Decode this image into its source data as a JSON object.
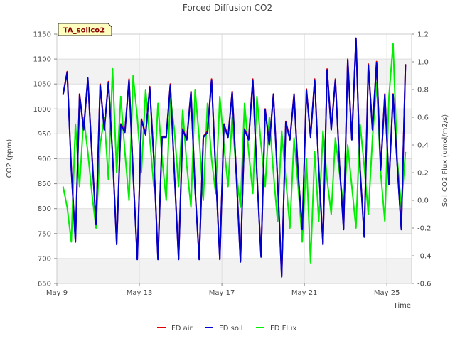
{
  "chart_data": {
    "type": "line",
    "title": "Forced Diffusion CO2",
    "badge": "TA_soilco2",
    "xlabel": "Time",
    "ylabel_left": "CO2 (ppm)",
    "ylabel_right": "Soil CO2 Flux (umol/m2/s)",
    "x_range_days": [
      9,
      26.2
    ],
    "x_ticks": [
      {
        "day": 9,
        "label": "May 9"
      },
      {
        "day": 13,
        "label": "May 13"
      },
      {
        "day": 17,
        "label": "May 17"
      },
      {
        "day": 21,
        "label": "May 21"
      },
      {
        "day": 25,
        "label": "May 25"
      }
    ],
    "ylim_left": [
      650,
      1150
    ],
    "yticks_left": [
      650,
      700,
      750,
      800,
      850,
      900,
      950,
      1000,
      1050,
      1100,
      1150
    ],
    "ylim_right": [
      -0.6,
      1.2
    ],
    "yticks_right": [
      -0.6,
      -0.4,
      -0.2,
      0.0,
      0.2,
      0.4,
      0.6,
      0.8,
      1.0,
      1.2
    ],
    "grid": true,
    "legend_position": "bottom-center",
    "series": [
      {
        "name": "FD air",
        "axis": "left",
        "color": "#dd0000",
        "x": [
          9.3,
          9.5,
          9.7,
          9.9,
          10.1,
          10.3,
          10.5,
          10.7,
          10.9,
          11.1,
          11.3,
          11.5,
          11.7,
          11.9,
          12.1,
          12.3,
          12.5,
          12.7,
          12.9,
          13.1,
          13.3,
          13.5,
          13.7,
          13.9,
          14.1,
          14.3,
          14.5,
          14.7,
          14.9,
          15.1,
          15.3,
          15.5,
          15.7,
          15.9,
          16.1,
          16.3,
          16.5,
          16.7,
          16.9,
          17.1,
          17.3,
          17.5,
          17.7,
          17.9,
          18.1,
          18.3,
          18.5,
          18.7,
          18.9,
          19.1,
          19.3,
          19.5,
          19.7,
          19.9,
          20.1,
          20.3,
          20.5,
          20.7,
          20.9,
          21.1,
          21.3,
          21.5,
          21.7,
          21.9,
          22.1,
          22.3,
          22.5,
          22.7,
          22.9,
          23.1,
          23.3,
          23.5,
          23.7,
          23.9,
          24.1,
          24.3,
          24.5,
          24.7,
          24.9,
          25.1,
          25.3,
          25.5,
          25.7,
          25.9
        ],
        "y": [
          1030,
          1075,
          880,
          735,
          1030,
          960,
          1060,
          910,
          770,
          1050,
          960,
          1055,
          910,
          730,
          970,
          955,
          1060,
          870,
          700,
          980,
          950,
          1045,
          900,
          700,
          945,
          945,
          1050,
          870,
          700,
          960,
          940,
          1035,
          840,
          700,
          945,
          955,
          1060,
          875,
          700,
          970,
          945,
          1035,
          870,
          695,
          960,
          940,
          1060,
          870,
          705,
          1000,
          930,
          1030,
          860,
          665,
          975,
          940,
          1030,
          870,
          760,
          1040,
          945,
          1060,
          880,
          730,
          1080,
          960,
          1060,
          890,
          760,
          1100,
          940,
          1140,
          880,
          745,
          1090,
          960,
          1095,
          880,
          1030,
          850,
          1030,
          890,
          760,
          1090
        ]
      },
      {
        "name": "FD soil",
        "axis": "left",
        "color": "#0000cc",
        "x": [
          9.3,
          9.5,
          9.7,
          9.9,
          10.1,
          10.3,
          10.5,
          10.7,
          10.9,
          11.1,
          11.3,
          11.5,
          11.7,
          11.9,
          12.1,
          12.3,
          12.5,
          12.7,
          12.9,
          13.1,
          13.3,
          13.5,
          13.7,
          13.9,
          14.1,
          14.3,
          14.5,
          14.7,
          14.9,
          15.1,
          15.3,
          15.5,
          15.7,
          15.9,
          16.1,
          16.3,
          16.5,
          16.7,
          16.9,
          17.1,
          17.3,
          17.5,
          17.7,
          17.9,
          18.1,
          18.3,
          18.5,
          18.7,
          18.9,
          19.1,
          19.3,
          19.5,
          19.7,
          19.9,
          20.1,
          20.3,
          20.5,
          20.7,
          20.9,
          21.1,
          21.3,
          21.5,
          21.7,
          21.9,
          22.1,
          22.3,
          22.5,
          22.7,
          22.9,
          23.1,
          23.3,
          23.5,
          23.7,
          23.9,
          24.1,
          24.3,
          24.5,
          24.7,
          24.9,
          25.1,
          25.3,
          25.5,
          25.7,
          25.9
        ],
        "y": [
          1028,
          1073,
          878,
          733,
          1028,
          958,
          1062,
          908,
          768,
          1048,
          958,
          1053,
          908,
          728,
          968,
          953,
          1058,
          868,
          698,
          978,
          948,
          1043,
          898,
          698,
          943,
          943,
          1048,
          868,
          698,
          958,
          938,
          1033,
          838,
          698,
          943,
          953,
          1058,
          873,
          698,
          968,
          943,
          1033,
          868,
          693,
          958,
          938,
          1058,
          868,
          703,
          998,
          928,
          1028,
          858,
          663,
          973,
          938,
          1028,
          868,
          758,
          1038,
          943,
          1058,
          878,
          728,
          1078,
          958,
          1058,
          888,
          758,
          1098,
          938,
          1142,
          878,
          743,
          1088,
          958,
          1093,
          878,
          1028,
          848,
          1028,
          888,
          758,
          1088
        ]
      },
      {
        "name": "FD Flux",
        "axis": "right",
        "color": "#00ee00",
        "x": [
          9.3,
          9.5,
          9.7,
          9.9,
          10.1,
          10.3,
          10.5,
          10.7,
          10.9,
          11.1,
          11.3,
          11.5,
          11.7,
          11.9,
          12.1,
          12.3,
          12.5,
          12.7,
          12.9,
          13.1,
          13.3,
          13.5,
          13.7,
          13.9,
          14.1,
          14.3,
          14.5,
          14.7,
          14.9,
          15.1,
          15.3,
          15.5,
          15.7,
          15.9,
          16.1,
          16.3,
          16.5,
          16.7,
          16.9,
          17.1,
          17.3,
          17.5,
          17.7,
          17.9,
          18.1,
          18.3,
          18.5,
          18.7,
          18.9,
          19.1,
          19.3,
          19.5,
          19.7,
          19.9,
          20.1,
          20.3,
          20.5,
          20.7,
          20.9,
          21.1,
          21.3,
          21.5,
          21.7,
          21.9,
          22.1,
          22.3,
          22.5,
          22.7,
          22.9,
          23.1,
          23.3,
          23.5,
          23.7,
          23.9,
          24.1,
          24.3,
          24.5,
          24.7,
          24.9,
          25.1,
          25.3,
          25.5,
          25.7,
          25.9
        ],
        "y": [
          0.1,
          -0.05,
          -0.3,
          0.55,
          0.1,
          0.6,
          0.35,
          0.05,
          -0.2,
          0.4,
          0.6,
          0.15,
          0.95,
          0.2,
          0.75,
          0.35,
          0.0,
          0.9,
          0.6,
          0.2,
          0.8,
          0.45,
          0.1,
          0.7,
          0.3,
          0.0,
          0.75,
          0.5,
          0.1,
          0.65,
          0.25,
          -0.05,
          0.8,
          0.45,
          0.0,
          0.7,
          0.3,
          0.05,
          0.75,
          0.4,
          0.1,
          0.6,
          0.2,
          -0.05,
          0.7,
          0.35,
          0.05,
          0.75,
          0.4,
          0.1,
          0.6,
          0.2,
          -0.15,
          0.5,
          0.15,
          -0.2,
          0.45,
          0.1,
          -0.3,
          0.3,
          -0.45,
          0.35,
          -0.15,
          0.5,
          0.15,
          -0.1,
          0.45,
          0.2,
          -0.05,
          0.4,
          0.1,
          -0.2,
          0.55,
          0.25,
          -0.1,
          0.45,
          0.85,
          0.2,
          -0.15,
          0.75,
          1.13,
          0.3,
          -0.05,
          0.35
        ]
      }
    ]
  }
}
